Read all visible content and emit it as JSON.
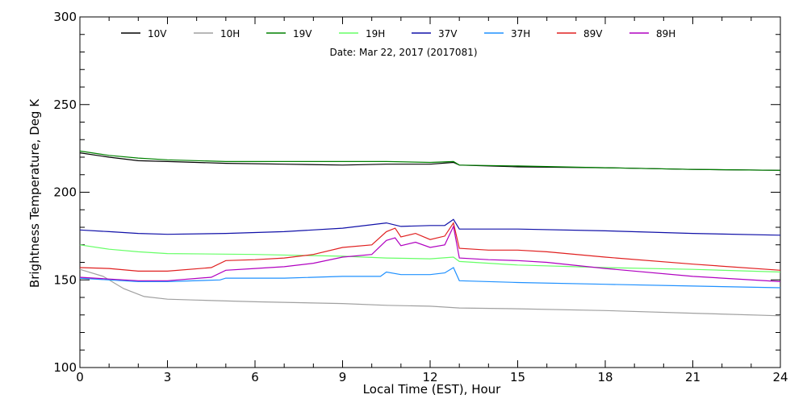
{
  "chart_data": {
    "type": "line",
    "subtitle": "Date: Mar 22, 2017 (2017081)",
    "xlabel": "Local Time (EST), Hour",
    "ylabel": "Brightness Temperature, Deg K",
    "xlim": [
      0,
      24
    ],
    "ylim": [
      100,
      300
    ],
    "xticks": [
      0,
      3,
      6,
      9,
      12,
      15,
      18,
      21,
      24
    ],
    "yticks": [
      100,
      150,
      200,
      250,
      300
    ],
    "grid": false,
    "legend_position": "top",
    "series": [
      {
        "name": "10V",
        "color": "#000000",
        "x": [
          0,
          1,
          2,
          3,
          5,
          7,
          9,
          10.5,
          12,
          12.8,
          13,
          15,
          18,
          21,
          24
        ],
        "y": [
          222.5,
          220,
          218,
          217.5,
          216.5,
          216,
          215.5,
          216,
          216,
          217,
          215.5,
          214.5,
          214,
          213,
          212.5
        ]
      },
      {
        "name": "10H",
        "color": "#a0a0a0",
        "x": [
          0,
          0.8,
          1.5,
          2.2,
          3,
          4,
          6,
          9,
          10.5,
          12,
          13,
          15,
          18,
          21,
          24
        ],
        "y": [
          156,
          152,
          145,
          140.5,
          139,
          138.5,
          137.5,
          136.5,
          135.5,
          135,
          134,
          133.5,
          132.5,
          131,
          129.5
        ]
      },
      {
        "name": "19V",
        "color": "#008000",
        "x": [
          0,
          1,
          2,
          3,
          5,
          7,
          9,
          10.5,
          12,
          12.8,
          13,
          15,
          18,
          21,
          24
        ],
        "y": [
          223.5,
          221,
          219.5,
          218.5,
          217.5,
          217.5,
          217.5,
          217.5,
          217,
          217.5,
          215.5,
          215,
          214,
          213,
          212.5
        ]
      },
      {
        "name": "19H",
        "color": "#66ff66",
        "x": [
          0,
          1,
          2,
          3,
          6,
          9,
          10.5,
          12,
          12.8,
          13,
          15,
          18,
          21,
          24
        ],
        "y": [
          170,
          167.5,
          166,
          165,
          164.5,
          163.5,
          162.5,
          162,
          163,
          160.5,
          158.5,
          157,
          156,
          154.5
        ]
      },
      {
        "name": "37V",
        "color": "#1010a8",
        "x": [
          0,
          1,
          2,
          3,
          5,
          7,
          9,
          10.5,
          11,
          12,
          12.5,
          12.8,
          13,
          15,
          18,
          21,
          24
        ],
        "y": [
          178.5,
          177.5,
          176.5,
          176,
          176.5,
          177.5,
          179.5,
          182.5,
          180.5,
          181,
          181,
          184.5,
          179,
          179,
          178,
          176.5,
          175.5
        ]
      },
      {
        "name": "37H",
        "color": "#1e90ff",
        "x": [
          0,
          1,
          2,
          3,
          4.8,
          5,
          7,
          9,
          10.3,
          10.5,
          11,
          12,
          12.5,
          12.8,
          13,
          15,
          18,
          21,
          24
        ],
        "y": [
          151,
          150,
          149,
          149,
          150,
          151,
          151,
          152,
          152,
          154.5,
          153,
          153,
          154,
          157,
          149.5,
          148.5,
          147.5,
          146.5,
          145.5
        ]
      },
      {
        "name": "89V",
        "color": "#e02020",
        "x": [
          0,
          1,
          2,
          3,
          4.5,
          5,
          6,
          7,
          8,
          9,
          10,
          10.5,
          10.8,
          11,
          11.5,
          12,
          12.5,
          12.8,
          13,
          14,
          15,
          16,
          18,
          21,
          24
        ],
        "y": [
          157,
          156.5,
          155,
          155,
          157,
          161,
          161.5,
          162.5,
          164.5,
          168.5,
          170,
          177.5,
          179.5,
          174.5,
          176.5,
          173,
          175,
          182.5,
          168,
          167,
          167,
          166,
          163,
          159,
          155.5
        ]
      },
      {
        "name": "89H",
        "color": "#b000c0",
        "x": [
          0,
          1,
          2,
          3,
          4.5,
          5,
          6,
          7,
          8,
          9,
          10,
          10.5,
          10.8,
          11,
          11.5,
          12,
          12.5,
          12.8,
          13,
          14,
          15,
          16,
          18,
          21,
          24
        ],
        "y": [
          151.5,
          150.5,
          149.5,
          149.5,
          151.5,
          155.5,
          156.5,
          157.5,
          159.5,
          163,
          164.5,
          172.5,
          174,
          169.5,
          171.5,
          168.5,
          170,
          180.5,
          162.5,
          161.5,
          161,
          160,
          156.5,
          152,
          149
        ]
      }
    ]
  }
}
